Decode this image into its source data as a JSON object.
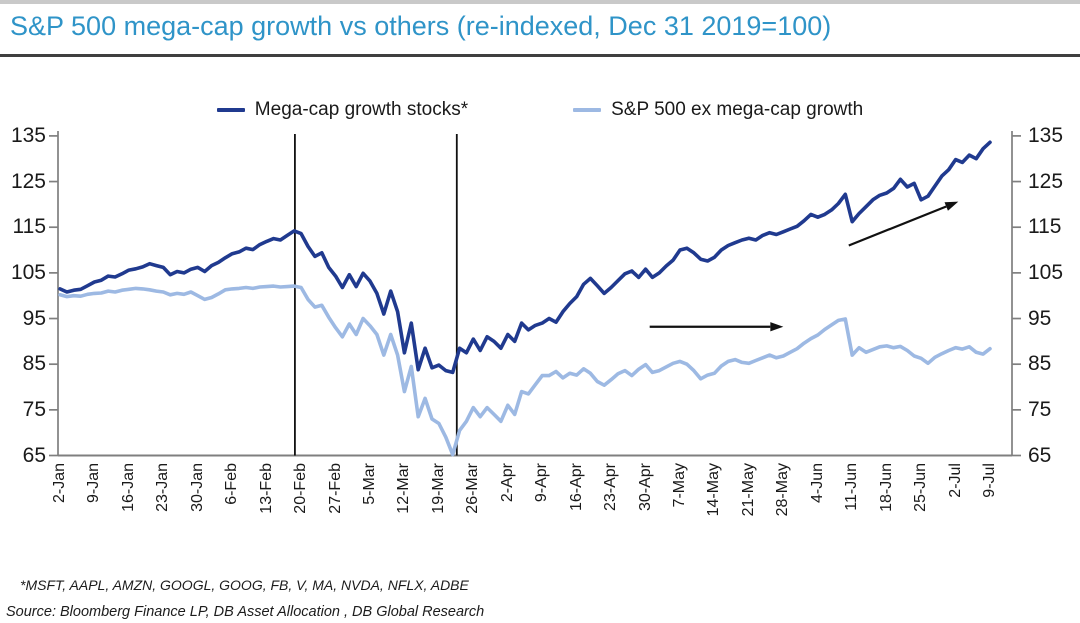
{
  "header": {
    "title": "S&P 500 mega-cap growth vs others (re-indexed, Dec 31 2019=100)"
  },
  "colors": {
    "title": "#2f94c8",
    "divider": "#3f3f3f",
    "axis": "#7f7f7f",
    "text": "#1a1a1a",
    "annotation": "#111111",
    "series_megacap": "#203a8f",
    "series_exmegacap": "#9db9e3"
  },
  "footnotes": {
    "constituents": "*MSFT, AAPL, AMZN, GOOGL, GOOG, FB, V, MA, NVDA, NFLX, ADBE",
    "source": "Source: Bloomberg Finance LP, DB Asset Allocation , DB Global Research"
  },
  "chart_data": {
    "type": "line",
    "title": "S&P 500 mega-cap growth vs others (re-indexed, Dec 31 2019=100)",
    "legend_position": "top",
    "grid": false,
    "dual_y_axis": true,
    "ylim": [
      65,
      135
    ],
    "yticks": [
      135,
      125,
      115,
      105,
      95,
      85,
      75,
      65
    ],
    "x_tick_every": 5,
    "categories": [
      "2-Jan",
      "9-Jan",
      "16-Jan",
      "23-Jan",
      "30-Jan",
      "6-Feb",
      "13-Feb",
      "20-Feb",
      "27-Feb",
      "5-Mar",
      "12-Mar",
      "19-Mar",
      "26-Mar",
      "2-Apr",
      "9-Apr",
      "16-Apr",
      "23-Apr",
      "30-Apr",
      "7-May",
      "14-May",
      "21-May",
      "28-May",
      "4-Jun",
      "11-Jun",
      "18-Jun",
      "25-Jun",
      "2-Jul",
      "9-Jul"
    ],
    "series": [
      {
        "name": "Mega-cap growth stocks*",
        "color": "#203a8f",
        "values": [
          101.5,
          100.8,
          101.2,
          101.4,
          102.2,
          103.0,
          103.4,
          104.3,
          104.1,
          104.8,
          105.6,
          105.9,
          106.3,
          107.0,
          106.6,
          106.2,
          104.6,
          105.3,
          105.0,
          105.8,
          106.2,
          105.3,
          106.6,
          107.3,
          108.3,
          109.2,
          109.6,
          110.4,
          110.1,
          111.2,
          111.9,
          112.5,
          112.2,
          113.2,
          114.2,
          113.6,
          110.8,
          108.6,
          109.4,
          106.2,
          104.3,
          101.8,
          104.6,
          102.0,
          104.9,
          103.2,
          100.5,
          96.0,
          101.0,
          96.5,
          87.5,
          94.0,
          83.8,
          88.5,
          84.2,
          84.8,
          83.6,
          83.2,
          88.5,
          87.5,
          90.5,
          88.0,
          91.0,
          90.0,
          88.5,
          91.5,
          90.0,
          94.0,
          92.5,
          93.5,
          94.0,
          95.0,
          94.2,
          96.5,
          98.3,
          99.8,
          102.5,
          103.8,
          102.2,
          100.5,
          101.8,
          103.3,
          104.8,
          105.4,
          104.0,
          105.8,
          104.0,
          105.0,
          106.5,
          107.8,
          110.0,
          110.4,
          109.4,
          108.0,
          107.6,
          108.4,
          110.0,
          111.0,
          111.6,
          112.2,
          112.6,
          112.2,
          113.2,
          113.8,
          113.4,
          114.0,
          114.6,
          115.2,
          116.4,
          117.8,
          117.2,
          117.8,
          118.8,
          120.2,
          122.2,
          116.2,
          118.0,
          119.5,
          121.0,
          122.0,
          122.5,
          123.5,
          125.5,
          123.8,
          124.6,
          121.0,
          121.8,
          124.0,
          126.2,
          127.6,
          129.8,
          129.2,
          130.8,
          130.0,
          132.2,
          133.6
        ]
      },
      {
        "name": "S&P 500 ex mega-cap growth",
        "color": "#9db9e3",
        "values": [
          100.2,
          99.8,
          100.0,
          99.9,
          100.3,
          100.5,
          100.6,
          101.0,
          100.8,
          101.2,
          101.4,
          101.6,
          101.5,
          101.3,
          101.0,
          100.8,
          100.2,
          100.5,
          100.3,
          100.8,
          100.0,
          99.2,
          99.6,
          100.4,
          101.3,
          101.5,
          101.6,
          101.8,
          101.6,
          101.9,
          102.0,
          102.1,
          101.9,
          102.0,
          102.1,
          101.8,
          99.2,
          97.5,
          97.9,
          95.3,
          93.0,
          91.0,
          93.8,
          91.5,
          95.0,
          93.4,
          91.5,
          87.0,
          91.5,
          87.0,
          79.0,
          84.5,
          73.5,
          77.5,
          73.0,
          72.0,
          69.0,
          65.2,
          70.5,
          72.5,
          75.5,
          73.5,
          75.5,
          74.0,
          72.5,
          76.0,
          74.0,
          79.0,
          78.5,
          80.5,
          82.5,
          82.5,
          83.4,
          82.0,
          83.0,
          82.6,
          84.0,
          83.0,
          81.2,
          80.4,
          81.6,
          82.9,
          83.6,
          82.5,
          83.9,
          84.9,
          83.2,
          83.6,
          84.4,
          85.2,
          85.6,
          85.0,
          83.6,
          81.8,
          82.6,
          83.0,
          84.6,
          85.6,
          86.0,
          85.4,
          85.2,
          85.8,
          86.4,
          87.0,
          86.4,
          86.8,
          87.6,
          88.4,
          89.6,
          90.6,
          91.4,
          92.6,
          93.6,
          94.6,
          94.9,
          87.0,
          88.6,
          87.6,
          88.2,
          88.8,
          89.0,
          88.6,
          88.9,
          88.0,
          86.8,
          86.3,
          85.2,
          86.5,
          87.3,
          88.0,
          88.6,
          88.3,
          88.8,
          87.6,
          87.2,
          88.4
        ]
      }
    ],
    "annotations": {
      "vlines": [
        {
          "x_index": 34.1
        },
        {
          "x_index": 57.6
        }
      ],
      "arrows": [
        {
          "from": {
            "x_index": 85.6,
            "value": 93.2
          },
          "to": {
            "x_index": 105.0,
            "value": 93.2
          }
        },
        {
          "from": {
            "x_index": 114.5,
            "value": 111.0
          },
          "to": {
            "x_index": 130.4,
            "value": 120.6
          }
        }
      ]
    }
  }
}
